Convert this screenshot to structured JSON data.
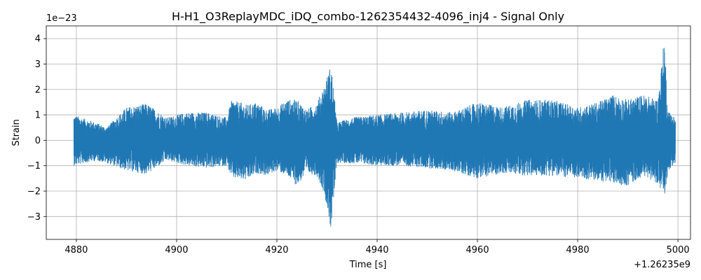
{
  "chart_data": {
    "type": "line",
    "title": "H-H1_O3ReplayMDC_iDQ_combo-1262354432-4096_inj4 - Signal Only",
    "xlabel": "Time [s]",
    "ylabel": "Strain",
    "x_offset_label": "+1.26235e9",
    "y_scale_label": "1e−23",
    "xlim": [
      4874,
      5002.5
    ],
    "ylim": [
      -3.9,
      4.5
    ],
    "x_ticks": [
      4880,
      4900,
      4920,
      4940,
      4960,
      4980,
      5000
    ],
    "x_tick_labels": [
      "4880",
      "4900",
      "4920",
      "4940",
      "4960",
      "4980",
      "5000"
    ],
    "y_ticks": [
      -3,
      -2,
      -1,
      0,
      1,
      2,
      3,
      4
    ],
    "y_tick_labels": [
      "−3",
      "−2",
      "−1",
      "0",
      "1",
      "2",
      "3",
      "4"
    ],
    "grid": true,
    "series": [
      {
        "color": "#1f77b4",
        "x_range": [
          4879.5,
          4999.5
        ],
        "envelope": [
          {
            "x": 4879.5,
            "max": 1.0,
            "min": -1.0
          },
          {
            "x": 4884,
            "max": 0.7,
            "min": -0.8
          },
          {
            "x": 4886,
            "max": 0.5,
            "min": -0.9
          },
          {
            "x": 4890,
            "max": 1.3,
            "min": -1.2
          },
          {
            "x": 4894,
            "max": 1.45,
            "min": -1.35
          },
          {
            "x": 4898,
            "max": 0.9,
            "min": -0.8
          },
          {
            "x": 4902,
            "max": 1.1,
            "min": -1.0
          },
          {
            "x": 4906,
            "max": 1.1,
            "min": -1.1
          },
          {
            "x": 4910,
            "max": 0.9,
            "min": -1.0
          },
          {
            "x": 4911,
            "max": 1.6,
            "min": -1.5
          },
          {
            "x": 4914,
            "max": 1.4,
            "min": -1.6
          },
          {
            "x": 4916,
            "max": 1.5,
            "min": -1.3
          },
          {
            "x": 4918,
            "max": 1.2,
            "min": -1.4
          },
          {
            "x": 4920,
            "max": 1.3,
            "min": -1.2
          },
          {
            "x": 4922,
            "max": 1.6,
            "min": -1.4
          },
          {
            "x": 4924,
            "max": 1.6,
            "min": -1.8
          },
          {
            "x": 4926,
            "max": 1.2,
            "min": -1.3
          },
          {
            "x": 4928,
            "max": 1.5,
            "min": -1.4
          },
          {
            "x": 4929.5,
            "max": 2.2,
            "min": -2.1
          },
          {
            "x": 4930.8,
            "max": 3.0,
            "min": -3.55
          },
          {
            "x": 4932,
            "max": 0.7,
            "min": -0.9
          },
          {
            "x": 4935,
            "max": 0.9,
            "min": -0.9
          },
          {
            "x": 4940,
            "max": 1.0,
            "min": -1.0
          },
          {
            "x": 4945,
            "max": 1.1,
            "min": -1.0
          },
          {
            "x": 4950,
            "max": 1.2,
            "min": -1.1
          },
          {
            "x": 4955,
            "max": 1.1,
            "min": -1.2
          },
          {
            "x": 4960,
            "max": 1.5,
            "min": -1.5
          },
          {
            "x": 4965,
            "max": 1.3,
            "min": -1.3
          },
          {
            "x": 4970,
            "max": 1.6,
            "min": -1.4
          },
          {
            "x": 4975,
            "max": 1.6,
            "min": -1.4
          },
          {
            "x": 4980,
            "max": 1.3,
            "min": -1.5
          },
          {
            "x": 4984,
            "max": 1.5,
            "min": -1.6
          },
          {
            "x": 4987,
            "max": 1.8,
            "min": -1.7
          },
          {
            "x": 4990,
            "max": 1.6,
            "min": -1.8
          },
          {
            "x": 4993,
            "max": 1.8,
            "min": -1.4
          },
          {
            "x": 4996,
            "max": 1.6,
            "min": -1.7
          },
          {
            "x": 4997.3,
            "max": 4.1,
            "min": -2.35
          },
          {
            "x": 4998,
            "max": 1.2,
            "min": -1.2
          },
          {
            "x": 4999.5,
            "max": 0.9,
            "min": -0.9
          }
        ]
      }
    ]
  }
}
